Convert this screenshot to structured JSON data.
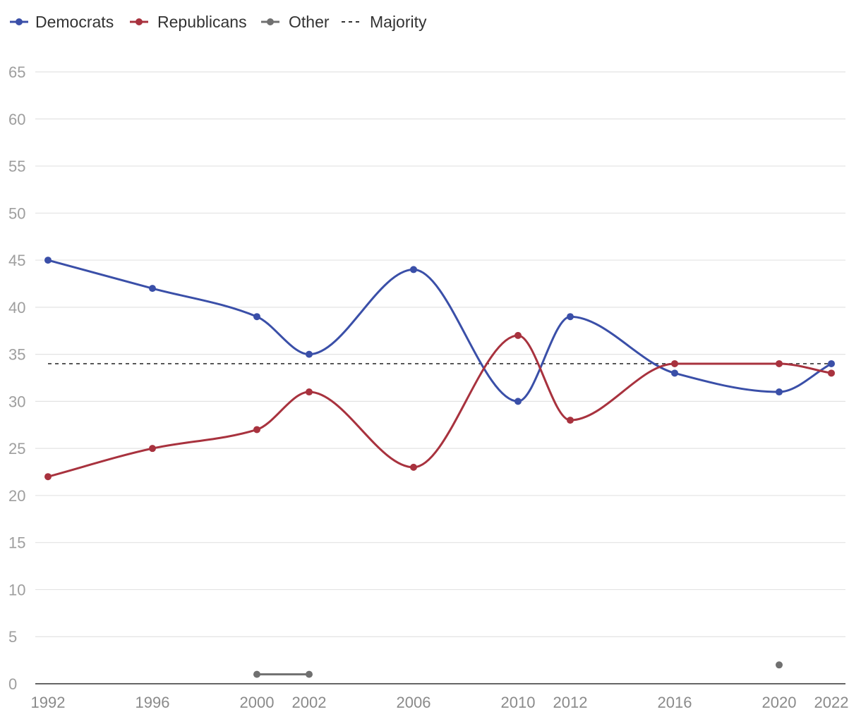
{
  "chart_data": {
    "type": "line",
    "title": "",
    "xlabel": "",
    "ylabel": "",
    "x": [
      1992,
      1996,
      2000,
      2002,
      2006,
      2010,
      2012,
      2016,
      2020,
      2022
    ],
    "x_tick_labels": [
      "1992",
      "1996",
      "2000",
      "2002",
      "2006",
      "2010",
      "2012",
      "2016",
      "2020",
      "2022"
    ],
    "ylim": [
      0,
      65
    ],
    "y_ticks": [
      0,
      5,
      10,
      15,
      20,
      25,
      30,
      35,
      40,
      45,
      50,
      55,
      60,
      65
    ],
    "y_tick_labels": [
      "0",
      "5",
      "10",
      "15",
      "20",
      "25",
      "30",
      "35",
      "40",
      "45",
      "50",
      "55",
      "60",
      "65"
    ],
    "grid": true,
    "legend_position": "top-left",
    "series": [
      {
        "name": "Democrats",
        "color": "#3a4fa8",
        "values": [
          45,
          42,
          39,
          35,
          44,
          30,
          39,
          33,
          31,
          34
        ]
      },
      {
        "name": "Republicans",
        "color": "#a8323e",
        "values": [
          22,
          25,
          27,
          31,
          23,
          37,
          28,
          34,
          34,
          33
        ]
      },
      {
        "name": "Other",
        "color": "#707070",
        "values": [
          null,
          null,
          1,
          1,
          null,
          null,
          null,
          null,
          2,
          null
        ]
      }
    ],
    "reference_line": {
      "name": "Majority",
      "value": 34,
      "color": "#333333",
      "style": "dashed"
    }
  }
}
